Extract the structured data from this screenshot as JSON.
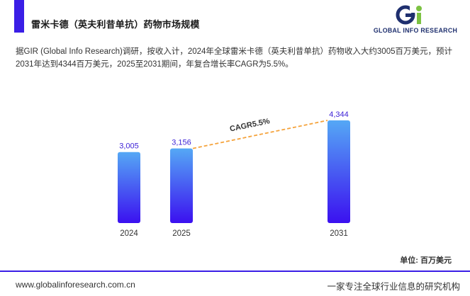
{
  "header": {
    "title": "雷米卡德（英夫利昔单抗）药物市场规模",
    "logo_text": "GLOBAL INFO RESEARCH",
    "accent_color": "#3a1ee6"
  },
  "intro_text": "据GIR (Global Info Research)调研，按收入计，2024年全球雷米卡德（英夫利昔单抗）药物收入大约3005百万美元，预计2031年达到4344百万美元，2025至2031期间，年复合增长率CAGR为5.5%。",
  "chart_data": {
    "type": "bar",
    "categories": [
      "2024",
      "2025",
      "2031"
    ],
    "values": [
      3005,
      3156,
      4344
    ],
    "value_labels": [
      "3,005",
      "3,156",
      "4,344"
    ],
    "unit": "单位: 百万美元",
    "annotation": "CAGR5.5%",
    "annotation_from": "2025",
    "annotation_to": "2031",
    "bar_gradient": [
      "#55a8f5",
      "#3b10f0"
    ],
    "annotation_color": "#f5a33c",
    "ylim": [
      0,
      4800
    ],
    "grid": false
  },
  "footer": {
    "url": "www.globalinforesearch.com.cn",
    "slogan": "一家专注全球行业信息的研究机构"
  }
}
